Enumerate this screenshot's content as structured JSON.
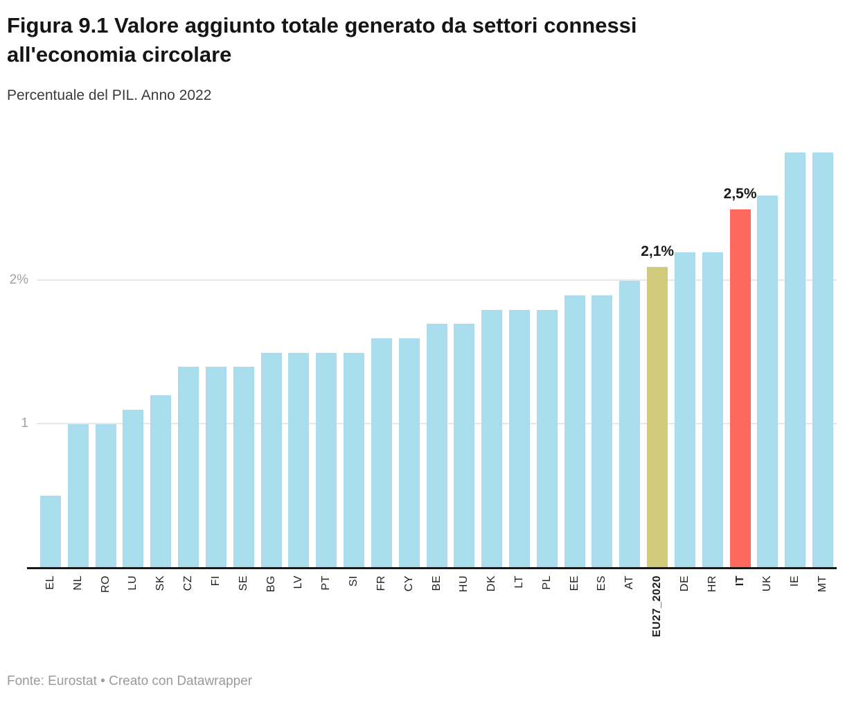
{
  "header": {
    "title": "Figura 9.1 Valore aggiunto totale generato da settori connessi all'economia circolare",
    "subtitle": "Percentuale del PIL. Anno 2022"
  },
  "footer": {
    "text": "Fonte: Eurostat • Creato con Datawrapper"
  },
  "chart_data": {
    "type": "bar",
    "title": "Figura 9.1 Valore aggiunto totale generato da settori connessi all'economia circolare",
    "subtitle": "Percentuale del PIL. Anno 2022",
    "categories": [
      "EL",
      "NL",
      "RO",
      "LU",
      "SK",
      "CZ",
      "FI",
      "SE",
      "BG",
      "LV",
      "PT",
      "SI",
      "FR",
      "CY",
      "BE",
      "HU",
      "DK",
      "LT",
      "PL",
      "EE",
      "ES",
      "AT",
      "EU27_2020",
      "DE",
      "HR",
      "IT",
      "UK",
      "IE",
      "MT"
    ],
    "values": [
      0.5,
      1.0,
      1.0,
      1.1,
      1.2,
      1.4,
      1.4,
      1.4,
      1.5,
      1.5,
      1.5,
      1.5,
      1.6,
      1.6,
      1.7,
      1.7,
      1.8,
      1.8,
      1.8,
      1.9,
      1.9,
      2.0,
      2.1,
      2.2,
      2.2,
      2.5,
      2.6,
      2.9,
      2.9
    ],
    "unit": "%",
    "ylim": [
      0,
      2.93
    ],
    "yticks": [
      {
        "value": 1,
        "label": "1"
      },
      {
        "value": 2,
        "label": "2%"
      }
    ],
    "grid": "horizontal",
    "default_color": "#a9dcec",
    "highlight_colors": {
      "EU27_2020": "#d1c97c",
      "IT": "#fc6a5e"
    },
    "value_labels": {
      "EU27_2020": "2,1%",
      "IT": "2,5%"
    },
    "bold_categories": [
      "EU27_2020",
      "IT"
    ]
  }
}
